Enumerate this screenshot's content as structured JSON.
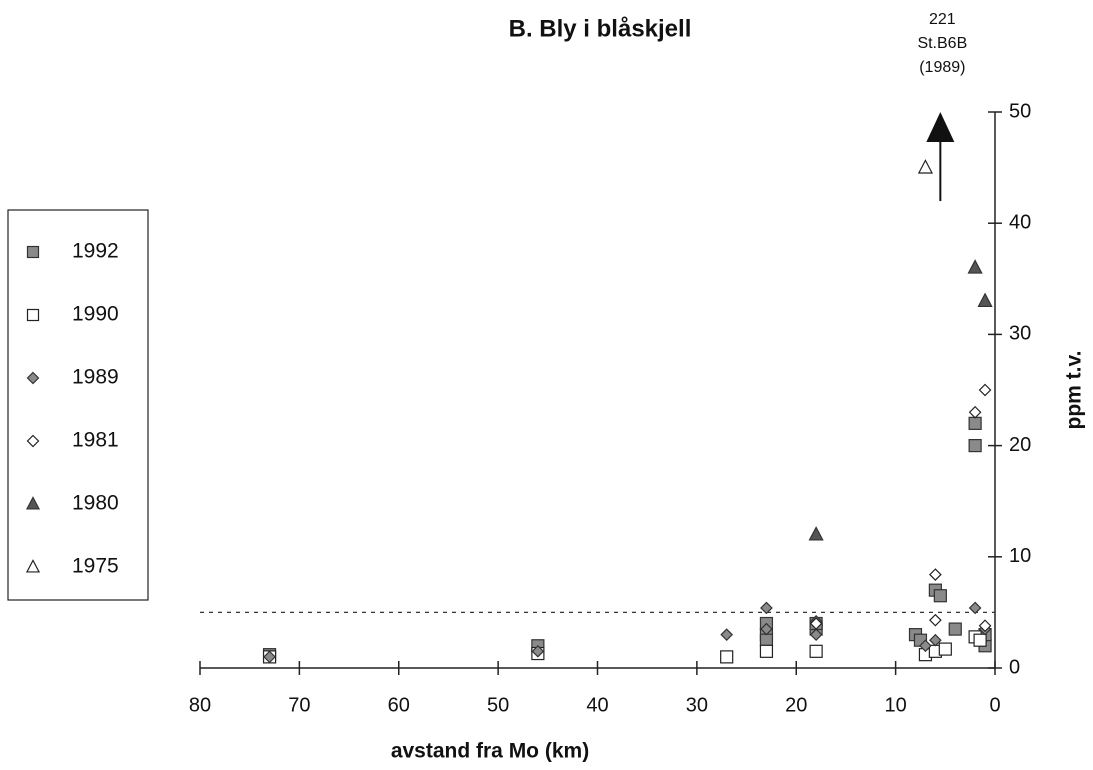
{
  "chart_data": {
    "type": "scatter",
    "title": "B. Bly i blåskjell",
    "x_label": "avstand fra Mo (km)",
    "y_label": "ppm t.v.",
    "xlim": [
      80,
      0
    ],
    "xticks": [
      80,
      70,
      60,
      50,
      40,
      30,
      20,
      10,
      0
    ],
    "ylim": [
      0,
      50
    ],
    "yticks": [
      0,
      10,
      20,
      30,
      40,
      50
    ],
    "reference_line": 5,
    "annotation": {
      "lines": [
        "221",
        "St.B6B",
        "(1989)"
      ],
      "x": 5.5,
      "y": [
        42,
        50
      ]
    },
    "legend": "left",
    "series": [
      {
        "name": "1992",
        "color": "#8a8a8a",
        "marker": "square",
        "x": [
          73,
          46,
          23,
          23,
          23,
          18,
          18,
          8,
          7.5,
          6,
          5.5,
          4,
          2,
          2,
          1,
          1
        ],
        "values": [
          1.2,
          2,
          3,
          4,
          2.5,
          3.5,
          4,
          3,
          2.5,
          7,
          6.5,
          3.5,
          22,
          20,
          2,
          3
        ]
      },
      {
        "name": "1990",
        "color": "none",
        "marker": "square",
        "x": [
          73,
          46,
          27,
          23,
          18,
          7,
          6,
          5,
          2,
          1.5
        ],
        "values": [
          1,
          1.3,
          1,
          1.5,
          1.5,
          1.2,
          1.5,
          1.7,
          2.8,
          2.5
        ]
      },
      {
        "name": "1989",
        "color": "#8a8a8a",
        "marker": "diamond",
        "x": [
          73,
          46,
          27,
          23,
          23,
          18,
          18,
          7,
          6,
          2,
          1
        ],
        "values": [
          1,
          1.5,
          3,
          5.4,
          3.5,
          4.2,
          3,
          2,
          2.5,
          5.4,
          3.5
        ]
      },
      {
        "name": "1981",
        "color": "none",
        "marker": "diamond",
        "x": [
          18,
          6,
          6,
          2,
          1,
          1
        ],
        "values": [
          4,
          8.4,
          4.3,
          23,
          25,
          3.8
        ]
      },
      {
        "name": "1980",
        "color": "#555555",
        "marker": "triangle",
        "x": [
          18,
          2,
          1
        ],
        "values": [
          12,
          36,
          33
        ]
      },
      {
        "name": "1975",
        "color": "none",
        "marker": "triangle",
        "x": [
          7
        ],
        "values": [
          45
        ]
      }
    ]
  }
}
